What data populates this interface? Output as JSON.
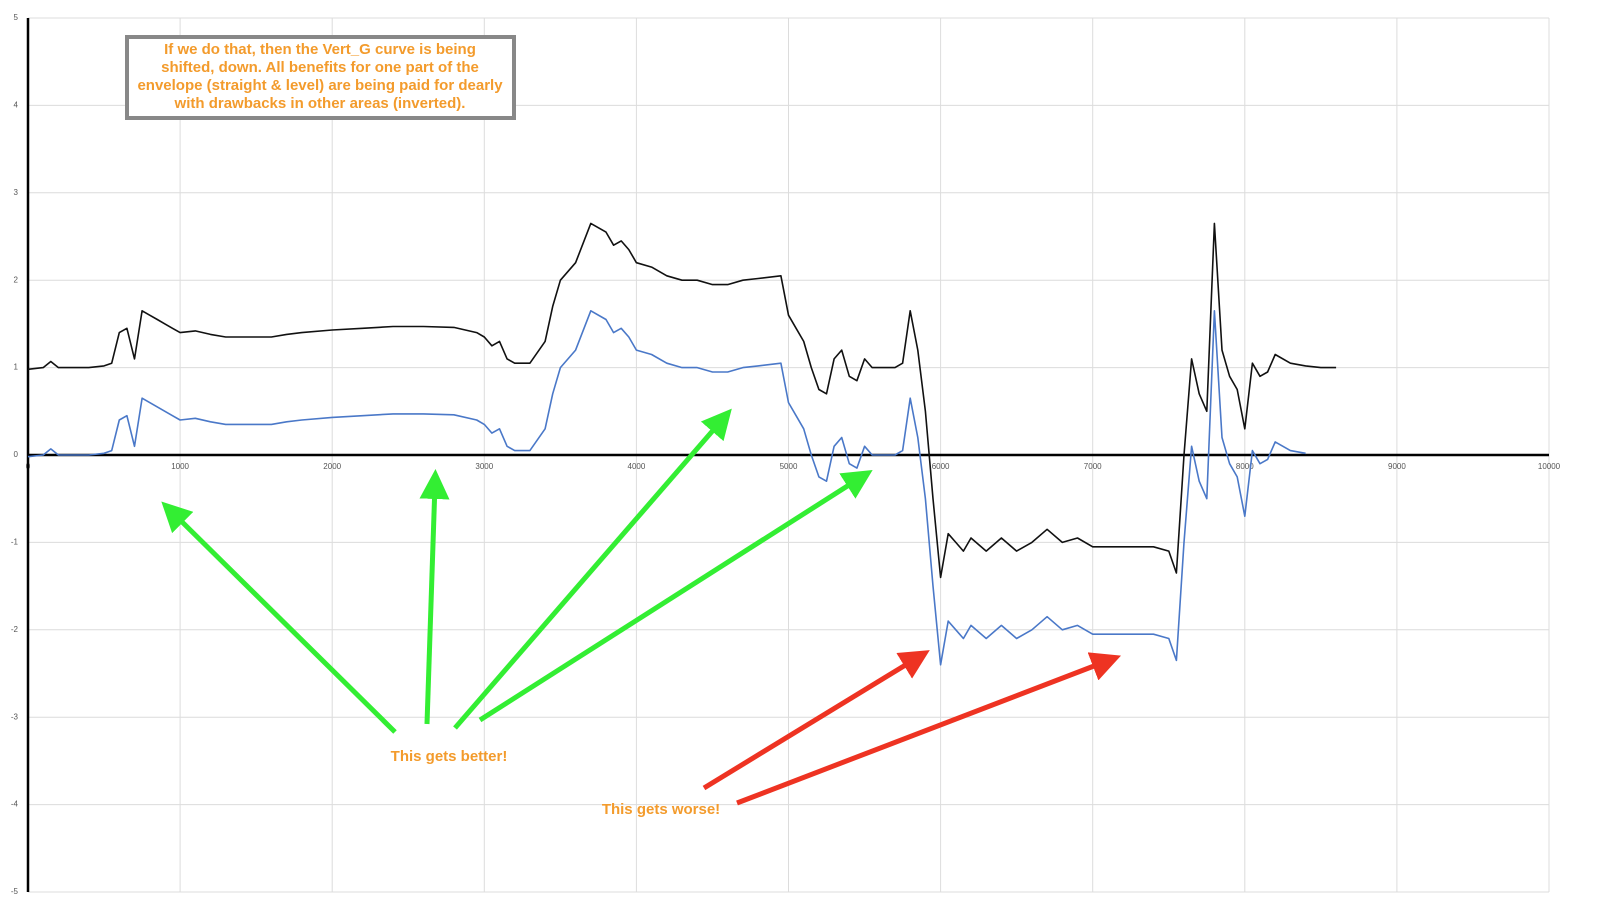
{
  "chart_data": {
    "type": "line",
    "annotations": {
      "box": [
        "If we do that, then the Vert_G curve is being",
        "shifted, down. All benefits for one part of the",
        "envelope (straight & level) are being paid for dearly",
        "with drawbacks in other areas (inverted)."
      ],
      "better": "This gets better!",
      "worse": "This gets worse!"
    },
    "x": [
      0,
      100,
      150,
      200,
      300,
      400,
      500,
      550,
      600,
      650,
      700,
      750,
      800,
      850,
      900,
      950,
      1000,
      1100,
      1200,
      1300,
      1400,
      1500,
      1600,
      1700,
      1800,
      2000,
      2200,
      2400,
      2600,
      2800,
      2950,
      3000,
      3050,
      3100,
      3150,
      3200,
      3300,
      3400,
      3450,
      3500,
      3600,
      3700,
      3800,
      3850,
      3900,
      3950,
      4000,
      4100,
      4200,
      4300,
      4400,
      4500,
      4600,
      4700,
      4800,
      4950,
      5000,
      5050,
      5100,
      5150,
      5200,
      5250,
      5300,
      5350,
      5400,
      5450,
      5500,
      5550,
      5600,
      5700,
      5750,
      5800,
      5850,
      5900,
      5950,
      6000,
      6050,
      6100,
      6150,
      6200,
      6300,
      6400,
      6500,
      6600,
      6700,
      6800,
      6900,
      7000,
      7200,
      7400,
      7500,
      7550,
      7600,
      7650,
      7700,
      7750,
      7800,
      7850,
      7900,
      7950,
      8000,
      8050,
      8100,
      8150,
      8200,
      8300,
      8400,
      8500,
      8600
    ],
    "series": [
      {
        "color": "#111111",
        "values": [
          0.98,
          1.0,
          1.07,
          1.0,
          1.0,
          1.0,
          1.02,
          1.05,
          1.4,
          1.45,
          1.1,
          1.65,
          1.6,
          1.55,
          1.5,
          1.45,
          1.4,
          1.42,
          1.38,
          1.35,
          1.35,
          1.35,
          1.35,
          1.38,
          1.4,
          1.43,
          1.45,
          1.47,
          1.47,
          1.46,
          1.4,
          1.35,
          1.25,
          1.3,
          1.1,
          1.05,
          1.05,
          1.3,
          1.7,
          2.0,
          2.2,
          2.65,
          2.55,
          2.4,
          2.45,
          2.35,
          2.2,
          2.15,
          2.05,
          2.0,
          2.0,
          1.95,
          1.95,
          2.0,
          2.02,
          2.05,
          1.6,
          1.45,
          1.3,
          1.0,
          0.75,
          0.7,
          1.1,
          1.2,
          0.9,
          0.85,
          1.1,
          1.0,
          1.0,
          1.0,
          1.05,
          1.65,
          1.2,
          0.5,
          -0.5,
          -1.4,
          -0.9,
          -1.0,
          -1.1,
          -0.95,
          -1.1,
          -0.95,
          -1.1,
          -1.0,
          -0.85,
          -1.0,
          -0.95,
          -1.05,
          -1.05,
          -1.05,
          -1.1,
          -1.35,
          0.0,
          1.1,
          0.7,
          0.5,
          2.65,
          1.2,
          0.9,
          0.75,
          0.3,
          1.05,
          0.9,
          0.95,
          1.15,
          1.05,
          1.02,
          1.0,
          1.0
        ]
      },
      {
        "color": "#4a78c8",
        "values": [
          -0.02,
          0.0,
          0.07,
          0.0,
          0.0,
          0.0,
          0.02,
          0.05,
          0.4,
          0.45,
          0.1,
          0.65,
          0.6,
          0.55,
          0.5,
          0.45,
          0.4,
          0.42,
          0.38,
          0.35,
          0.35,
          0.35,
          0.35,
          0.38,
          0.4,
          0.43,
          0.45,
          0.47,
          0.47,
          0.46,
          0.4,
          0.35,
          0.25,
          0.3,
          0.1,
          0.05,
          0.05,
          0.3,
          0.7,
          1.0,
          1.2,
          1.65,
          1.55,
          1.4,
          1.45,
          1.35,
          1.2,
          1.15,
          1.05,
          1.0,
          1.0,
          0.95,
          0.95,
          1.0,
          1.02,
          1.05,
          0.6,
          0.45,
          0.3,
          0.0,
          -0.25,
          -0.3,
          0.1,
          0.2,
          -0.1,
          -0.15,
          0.1,
          0.0,
          0.0,
          0.0,
          0.05,
          0.65,
          0.2,
          -0.5,
          -1.5,
          -2.4,
          -1.9,
          -2.0,
          -2.1,
          -1.95,
          -2.1,
          -1.95,
          -2.1,
          -2.0,
          -1.85,
          -2.0,
          -1.95,
          -2.05,
          -2.05,
          -2.05,
          -2.1,
          -2.35,
          -1.0,
          0.1,
          -0.3,
          -0.5,
          1.65,
          0.2,
          -0.1,
          -0.25,
          -0.7,
          0.05,
          -0.1,
          -0.05,
          0.15,
          0.05,
          0.02,
          null,
          null
        ]
      }
    ],
    "xlim": [
      0,
      10000
    ],
    "ylim": [
      -5,
      5
    ],
    "xticks": [
      0,
      1000,
      2000,
      3000,
      4000,
      5000,
      6000,
      7000,
      8000,
      9000,
      10000
    ],
    "yticks": [
      -5,
      -4,
      -3,
      -2,
      -1,
      0,
      1,
      2,
      3,
      4,
      5
    ],
    "grid": true
  }
}
